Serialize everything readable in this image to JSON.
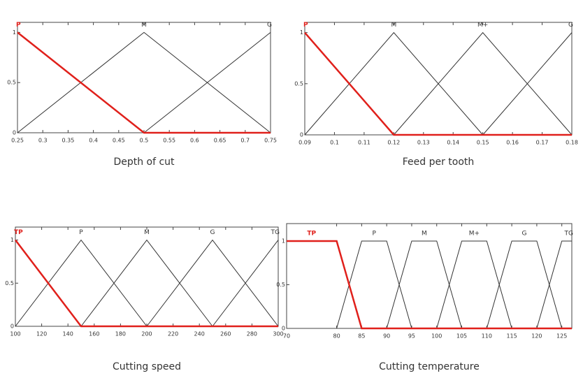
{
  "chart_data": [
    {
      "type": "line",
      "title": "Depth of cut",
      "xlim": [
        0.25,
        0.75
      ],
      "ylim": [
        0,
        1.1
      ],
      "xticks": [
        0.25,
        0.3,
        0.35,
        0.4,
        0.45,
        0.5,
        0.55,
        0.6,
        0.65,
        0.7,
        0.75
      ],
      "yticks": [
        0,
        0.5,
        1
      ],
      "series": [
        {
          "name": "P",
          "color": "#e0201b",
          "x": [
            0.25,
            0.5,
            0.75
          ],
          "values": [
            1,
            0,
            0
          ]
        },
        {
          "name": "M",
          "color": "#333333",
          "x": [
            0.25,
            0.5,
            0.75
          ],
          "values": [
            0,
            1,
            0
          ]
        },
        {
          "name": "G",
          "color": "#333333",
          "x": [
            0.5,
            0.75
          ],
          "values": [
            0,
            1
          ]
        }
      ]
    },
    {
      "type": "line",
      "title": "Feed per tooth",
      "xlim": [
        0.09,
        0.18
      ],
      "ylim": [
        0,
        1.1
      ],
      "xticks": [
        0.09,
        0.1,
        0.11,
        0.12,
        0.13,
        0.14,
        0.15,
        0.16,
        0.17,
        0.18
      ],
      "yticks": [
        0,
        0.5,
        1
      ],
      "series": [
        {
          "name": "P",
          "color": "#e0201b",
          "x": [
            0.09,
            0.12,
            0.18
          ],
          "values": [
            1,
            0,
            0
          ]
        },
        {
          "name": "M",
          "color": "#333333",
          "x": [
            0.09,
            0.12,
            0.15
          ],
          "values": [
            0,
            1,
            0
          ]
        },
        {
          "name": "M+",
          "color": "#333333",
          "x": [
            0.12,
            0.15,
            0.18
          ],
          "values": [
            0,
            1,
            0
          ]
        },
        {
          "name": "G",
          "color": "#333333",
          "x": [
            0.15,
            0.18
          ],
          "values": [
            0,
            1
          ]
        }
      ]
    },
    {
      "type": "line",
      "title": "Cutting speed",
      "xlim": [
        100,
        300
      ],
      "ylim": [
        0,
        1.15
      ],
      "xticks": [
        100,
        120,
        140,
        160,
        180,
        200,
        220,
        240,
        260,
        280,
        300
      ],
      "yticks": [
        0,
        0.5,
        1
      ],
      "series": [
        {
          "name": "TP",
          "color": "#e0201b",
          "x": [
            100,
            150,
            300
          ],
          "values": [
            1,
            0,
            0
          ]
        },
        {
          "name": "P",
          "color": "#333333",
          "x": [
            100,
            150,
            200
          ],
          "values": [
            0,
            1,
            0
          ]
        },
        {
          "name": "M",
          "color": "#333333",
          "x": [
            150,
            200,
            250
          ],
          "values": [
            0,
            1,
            0
          ]
        },
        {
          "name": "G",
          "color": "#333333",
          "x": [
            200,
            250,
            300
          ],
          "values": [
            0,
            1,
            0
          ]
        },
        {
          "name": "TG",
          "color": "#333333",
          "x": [
            250,
            300
          ],
          "values": [
            0,
            1
          ]
        }
      ]
    },
    {
      "type": "line",
      "title": "Cutting temperature",
      "xlim": [
        70,
        127
      ],
      "ylim": [
        0,
        1.2
      ],
      "xticks": [
        70,
        80,
        85,
        90,
        95,
        100,
        105,
        110,
        115,
        120,
        125
      ],
      "yticks": [
        0,
        0.5,
        1
      ],
      "series": [
        {
          "name": "TP",
          "color": "#e0201b",
          "x": [
            70,
            80,
            85,
            127
          ],
          "values": [
            1,
            1,
            0,
            0
          ]
        },
        {
          "name": "P",
          "color": "#333333",
          "x": [
            80,
            85,
            90,
            95
          ],
          "values": [
            0,
            1,
            1,
            0
          ]
        },
        {
          "name": "M",
          "color": "#333333",
          "x": [
            90,
            95,
            100,
            105
          ],
          "values": [
            0,
            1,
            1,
            0
          ]
        },
        {
          "name": "M+",
          "color": "#333333",
          "x": [
            100,
            105,
            110,
            115
          ],
          "values": [
            0,
            1,
            1,
            0
          ]
        },
        {
          "name": "G",
          "color": "#333333",
          "x": [
            110,
            115,
            120,
            125
          ],
          "values": [
            0,
            1,
            1,
            0
          ]
        },
        {
          "name": "TG",
          "color": "#333333",
          "x": [
            120,
            125,
            127
          ],
          "values": [
            0,
            1,
            1
          ]
        }
      ]
    }
  ]
}
